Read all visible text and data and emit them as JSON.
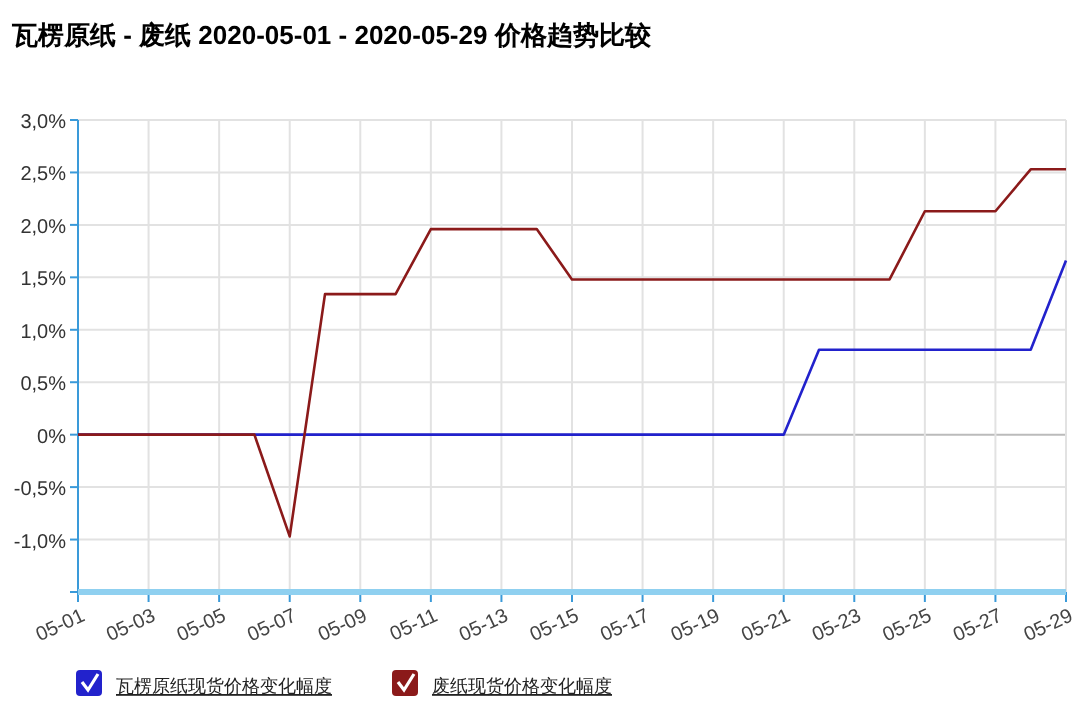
{
  "chart_data": {
    "type": "line",
    "title": "瓦楞原纸 - 废纸 2020-05-01 - 2020-05-29 价格趋势比较",
    "series": [
      {
        "name": "瓦楞原纸现货价格变化幅度",
        "color": "#2222cc",
        "x": [
          "2020-05-01",
          "2020-05-21",
          "2020-05-22",
          "2020-05-28",
          "2020-05-29"
        ],
        "values": [
          0,
          0,
          0.81,
          0.81,
          1.66
        ]
      },
      {
        "name": "废纸现货价格变化幅度",
        "color": "#8b1a1a",
        "x": [
          "2020-05-01",
          "2020-05-06",
          "2020-05-07",
          "2020-05-08",
          "2020-05-10",
          "2020-05-11",
          "2020-05-14",
          "2020-05-15",
          "2020-05-24",
          "2020-05-25",
          "2020-05-27",
          "2020-05-28",
          "2020-05-29"
        ],
        "values": [
          0,
          0,
          -0.97,
          1.34,
          1.34,
          1.96,
          1.96,
          1.48,
          1.48,
          2.13,
          2.13,
          2.53,
          2.53
        ]
      }
    ],
    "xlim": [
      "2020-05-01",
      "2020-05-29"
    ],
    "xticks": [
      {
        "value": "2020-05-01",
        "label": "05-01"
      },
      {
        "value": "2020-05-03",
        "label": "05-03"
      },
      {
        "value": "2020-05-05",
        "label": "05-05"
      },
      {
        "value": "2020-05-07",
        "label": "05-07"
      },
      {
        "value": "2020-05-09",
        "label": "05-09"
      },
      {
        "value": "2020-05-11",
        "label": "05-11"
      },
      {
        "value": "2020-05-13",
        "label": "05-13"
      },
      {
        "value": "2020-05-15",
        "label": "05-15"
      },
      {
        "value": "2020-05-17",
        "label": "05-17"
      },
      {
        "value": "2020-05-19",
        "label": "05-19"
      },
      {
        "value": "2020-05-21",
        "label": "05-21"
      },
      {
        "value": "2020-05-23",
        "label": "05-23"
      },
      {
        "value": "2020-05-25",
        "label": "05-25"
      },
      {
        "value": "2020-05-27",
        "label": "05-27"
      },
      {
        "value": "2020-05-29",
        "label": "05-29"
      }
    ],
    "ylim": [
      -1.5,
      3.0
    ],
    "yticks": [
      {
        "value": -1.5,
        "label": null
      },
      {
        "value": -1.0,
        "label": "-1,0%"
      },
      {
        "value": -0.5,
        "label": "-0,5%"
      },
      {
        "value": 0,
        "label": "0%"
      },
      {
        "value": 0.5,
        "label": "0,5%"
      },
      {
        "value": 1.0,
        "label": "1,0%"
      },
      {
        "value": 1.5,
        "label": "1,5%"
      },
      {
        "value": 2.0,
        "label": "2,0%"
      },
      {
        "value": 2.5,
        "label": "2,5%"
      },
      {
        "value": 3.0,
        "label": "3,0%"
      }
    ],
    "grid": true,
    "legend": "bottom",
    "marker": "none",
    "line_style": "solid"
  }
}
